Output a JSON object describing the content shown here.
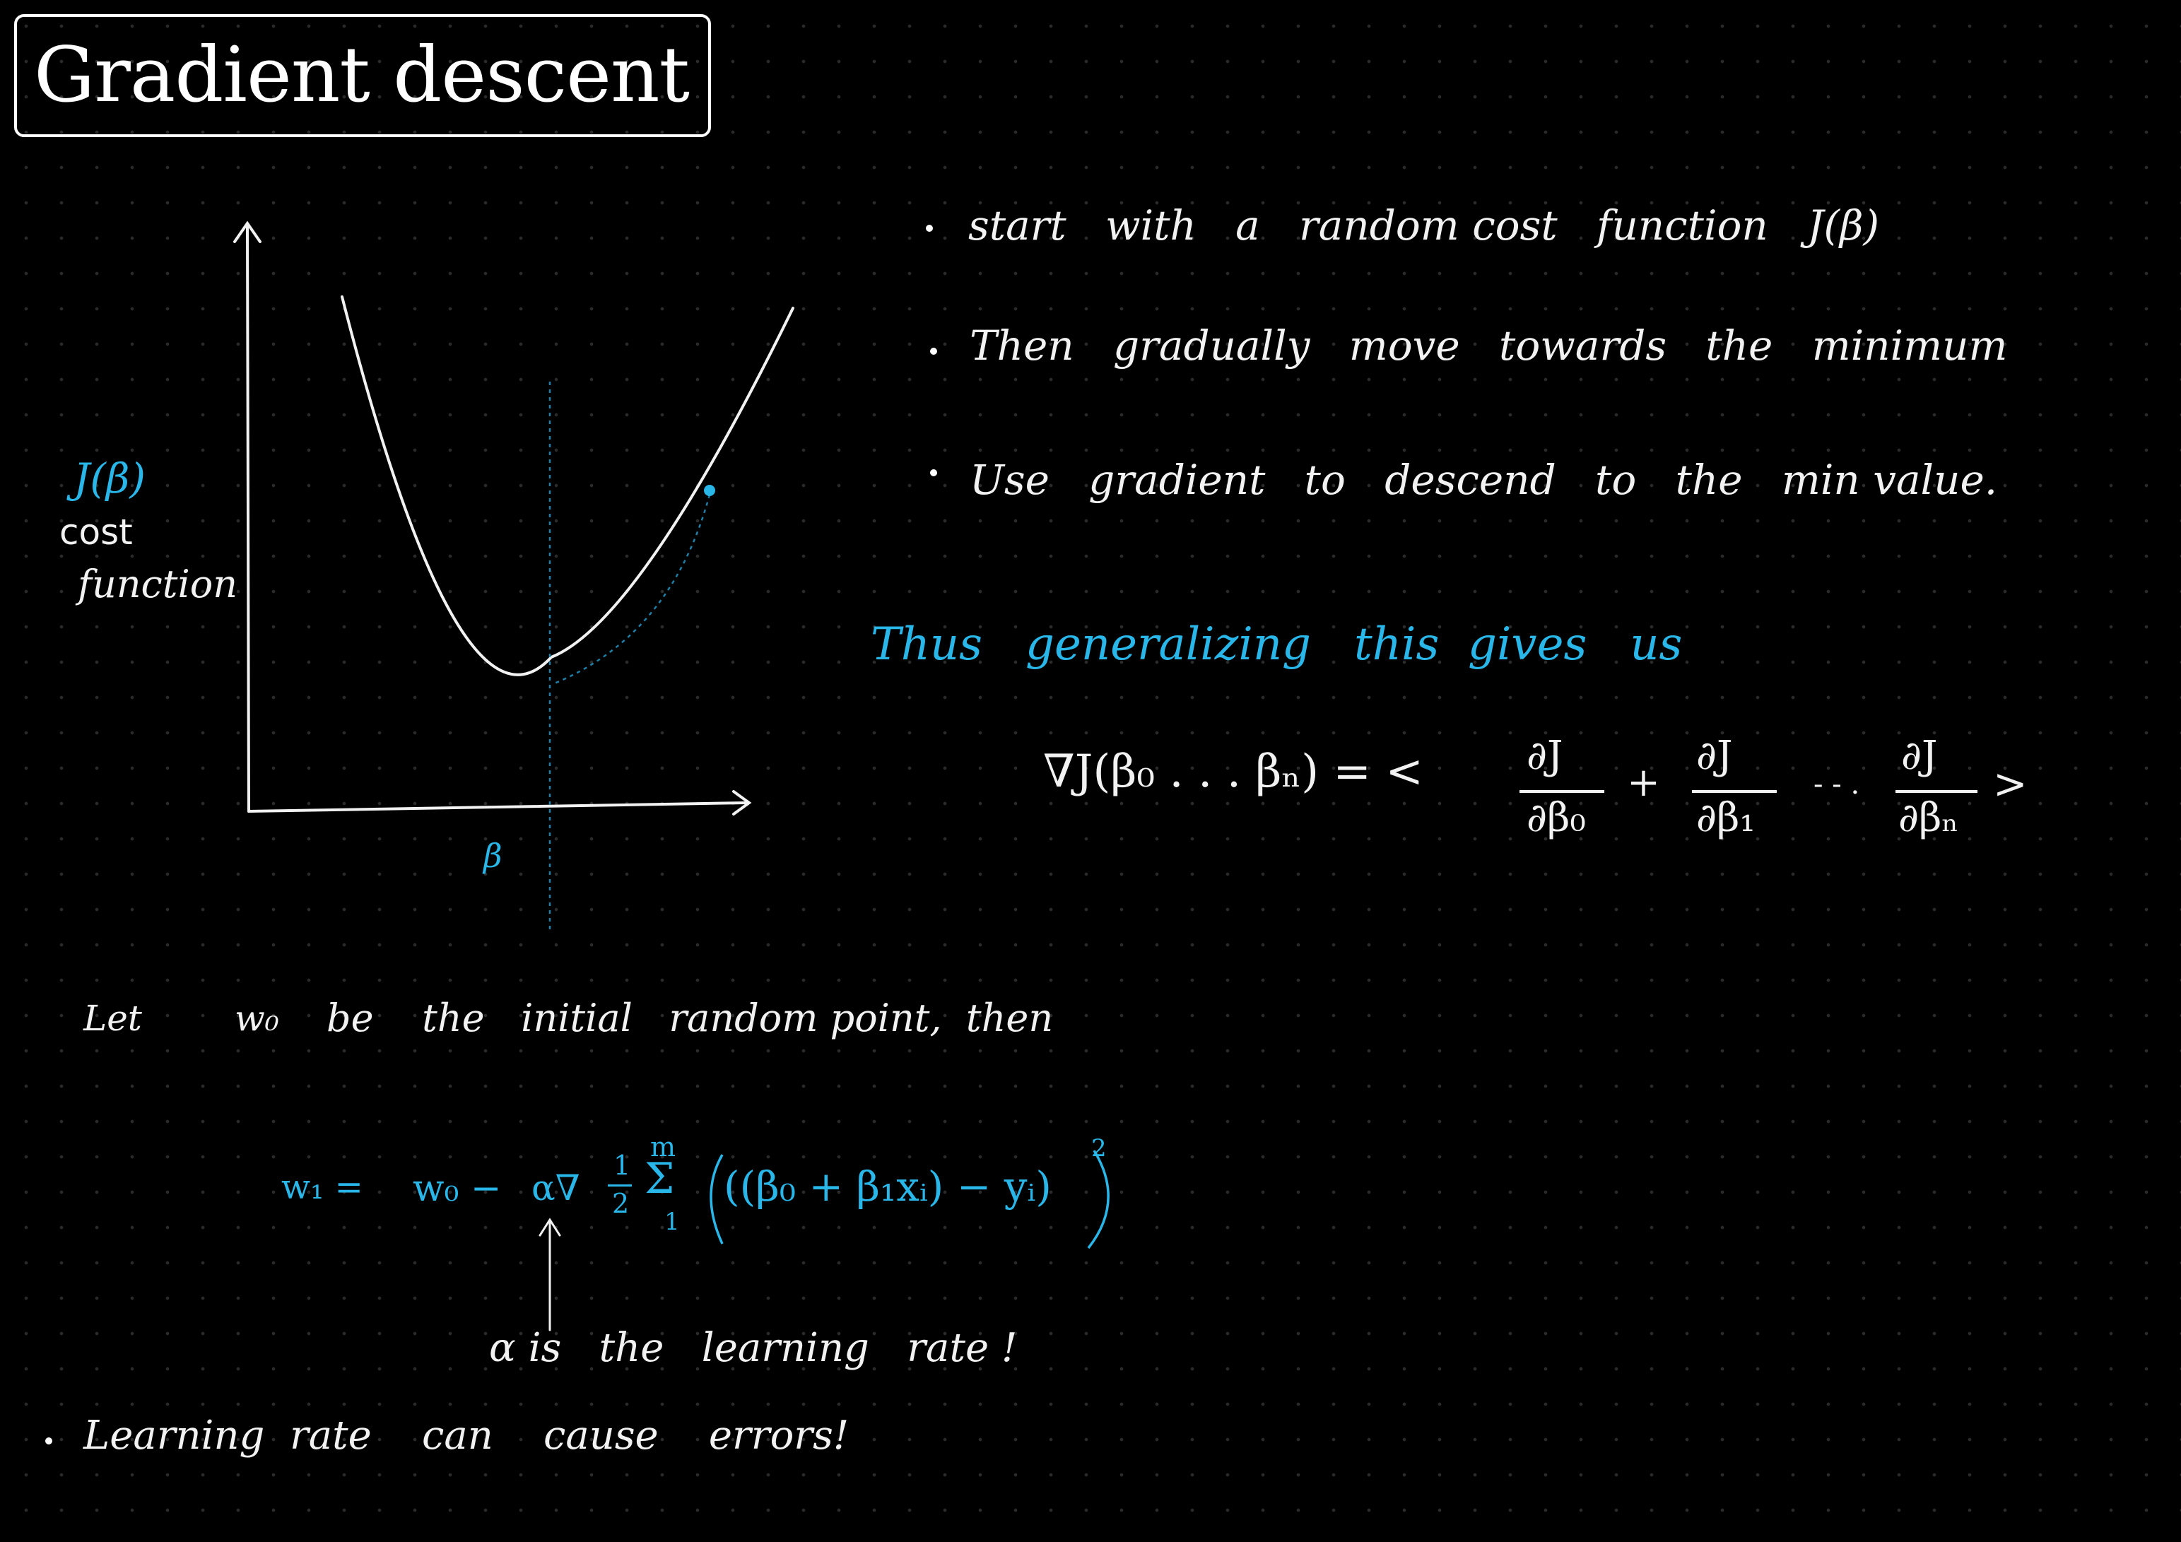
{
  "title": "Gradient descent",
  "graph": {
    "y_label": "J(β)",
    "y_label_2": "cost",
    "y_label_3": "function",
    "x_label": "β"
  },
  "bullets": [
    "start   with   a   random cost   function   J(β)",
    "Then   gradually   move   towards   the   minimum",
    "Use   gradient   to   descend   to   the   min value."
  ],
  "generalizing": "Thus   generalizing   this  gives   us",
  "gradient_eq": {
    "lhs": "∇J(β₀ . . . βₙ) = <",
    "t1_num": "∂J",
    "t1_den": "∂β₀",
    "plus": "+",
    "t2_num": "∂J",
    "t2_den": "∂β₁",
    "dots": "- - .",
    "t3_num": "∂J",
    "t3_den": "∂βₙ",
    "close": ">"
  },
  "let_line": {
    "let": "Let",
    "w0": "w₀",
    "rest": "be    the   initial   random point,  then"
  },
  "update_eq": {
    "lhs": "w₁ =",
    "w0": "w₀ −",
    "alpha_grad": "α∇",
    "half_num": "1",
    "half_den": "2",
    "sum_top": "m",
    "sum": "Σ",
    "sum_bottom": "1",
    "body": "((β₀ + β₁xᵢ) − yᵢ)",
    "exp": "2"
  },
  "alpha_note": "α is   the   learning   rate !",
  "bottom_note": "Learning  rate    can    cause    errors!"
}
